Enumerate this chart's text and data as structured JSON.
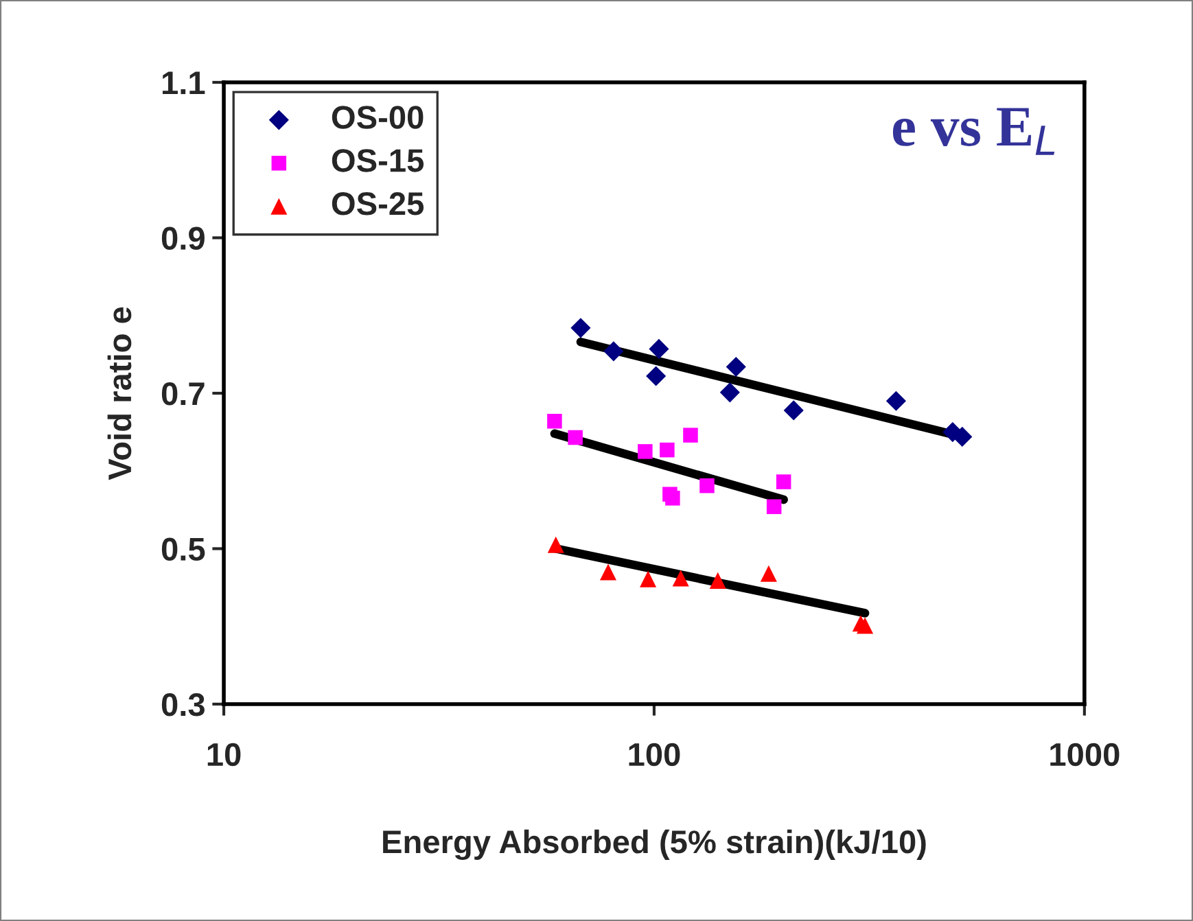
{
  "chart_data": {
    "type": "scatter",
    "xlabel": "Energy Absorbed (5% strain)(kJ/10)",
    "ylabel": "Void ratio e",
    "annotations": [
      "e vs E$_{L}$"
    ],
    "log": "x",
    "xlim": [
      10,
      1000
    ],
    "xticks": [
      10,
      100,
      1000
    ],
    "ylim": [
      0.3,
      1.1
    ],
    "yticks": [
      0.3,
      0.5,
      0.7,
      0.9,
      1.1
    ],
    "grid": false,
    "legend": "top left",
    "series": [
      {
        "name": "OS-00",
        "color": "#000080",
        "marker": "diamond",
        "x": [
          67.5,
          80.5,
          102.6,
          101,
          155,
          150,
          211,
          365,
          494,
          520
        ],
        "values": [
          0.784,
          0.754,
          0.757,
          0.722,
          0.734,
          0.701,
          0.678,
          0.69,
          0.65,
          0.644
        ]
      },
      {
        "name": "OS-15",
        "color": "#ff00ff",
        "marker": "square",
        "x": [
          58.7,
          65.6,
          95.3,
          107.2,
          121.5,
          108.8,
          110.4,
          132.7,
          200,
          190
        ],
        "values": [
          0.664,
          0.643,
          0.625,
          0.627,
          0.646,
          0.57,
          0.565,
          0.581,
          0.586,
          0.554
        ]
      },
      {
        "name": "OS-25",
        "color": "#ff0000",
        "marker": "triangle",
        "x": [
          59.1,
          78.2,
          96.8,
          115.3,
          140.6,
          184.6,
          302,
          309
        ],
        "values": [
          0.505,
          0.47,
          0.461,
          0.462,
          0.459,
          0.468,
          0.404,
          0.401
        ]
      },
      {
        "type": "line",
        "color": "#000000",
        "marker": "none",
        "line_style": "solid",
        "x": [
          67.5,
          520
        ],
        "values": [
          0.766,
          0.644
        ]
      },
      {
        "type": "line",
        "color": "#000000",
        "marker": "none",
        "line_style": "solid",
        "x": [
          58.7,
          200
        ],
        "values": [
          0.648,
          0.563
        ]
      },
      {
        "type": "line",
        "color": "#000000",
        "marker": "none",
        "line_style": "solid",
        "x": [
          59.1,
          309
        ],
        "values": [
          0.5,
          0.417
        ]
      }
    ]
  }
}
